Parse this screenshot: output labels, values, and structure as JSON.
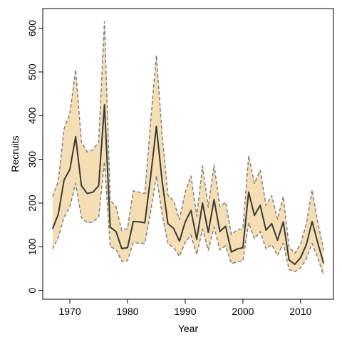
{
  "chart_data": {
    "type": "line",
    "title": "",
    "xlabel": "Year",
    "ylabel": "Recruits",
    "xlim": [
      1965.3,
      2015.7
    ],
    "ylim": [
      -20,
      645
    ],
    "x_ticks": [
      1970,
      1980,
      1990,
      2000,
      2010
    ],
    "y_ticks": [
      0,
      100,
      200,
      300,
      400,
      500,
      600
    ],
    "grid": false,
    "legend": "none",
    "colors": {
      "band": "#f5deb3",
      "line": "#3a3a3a",
      "bounds": "#808080"
    },
    "x": [
      1967,
      1968,
      1969,
      1970,
      1971,
      1972,
      1973,
      1974,
      1975,
      1976,
      1977,
      1978,
      1979,
      1980,
      1981,
      1982,
      1983,
      1984,
      1985,
      1986,
      1987,
      1988,
      1989,
      1990,
      1991,
      1992,
      1993,
      1994,
      1995,
      1996,
      1997,
      1998,
      1999,
      2000,
      2001,
      2002,
      2003,
      2004,
      2005,
      2006,
      2007,
      2008,
      2009,
      2010,
      2011,
      2012,
      2013,
      2014
    ],
    "series": [
      {
        "role": "estimate",
        "values": [
          141,
          175,
          253,
          277,
          352,
          240,
          222,
          225,
          240,
          425,
          145,
          135,
          96,
          98,
          158,
          157,
          155,
          260,
          375,
          250,
          153,
          142,
          113,
          157,
          183,
          117,
          200,
          133,
          208,
          135,
          147,
          88,
          95,
          98,
          225,
          172,
          195,
          138,
          153,
          115,
          157,
          70,
          60,
          75,
          105,
          158,
          108,
          62
        ]
      },
      {
        "role": "upper",
        "values": [
          215,
          250,
          370,
          405,
          505,
          340,
          317,
          322,
          340,
          615,
          207,
          192,
          137,
          142,
          228,
          225,
          222,
          385,
          538,
          355,
          218,
          205,
          162,
          225,
          262,
          170,
          285,
          190,
          288,
          192,
          202,
          128,
          138,
          142,
          308,
          245,
          275,
          195,
          217,
          163,
          215,
          100,
          85,
          107,
          152,
          230,
          155,
          92
        ]
      },
      {
        "role": "lower",
        "values": [
          95,
          122,
          168,
          192,
          245,
          167,
          155,
          157,
          168,
          295,
          100,
          94,
          67,
          68,
          110,
          108,
          108,
          180,
          262,
          175,
          107,
          98,
          78,
          110,
          127,
          82,
          140,
          92,
          145,
          93,
          102,
          62,
          65,
          68,
          155,
          118,
          135,
          95,
          105,
          80,
          108,
          48,
          43,
          52,
          72,
          108,
          73,
          35
        ]
      }
    ]
  }
}
